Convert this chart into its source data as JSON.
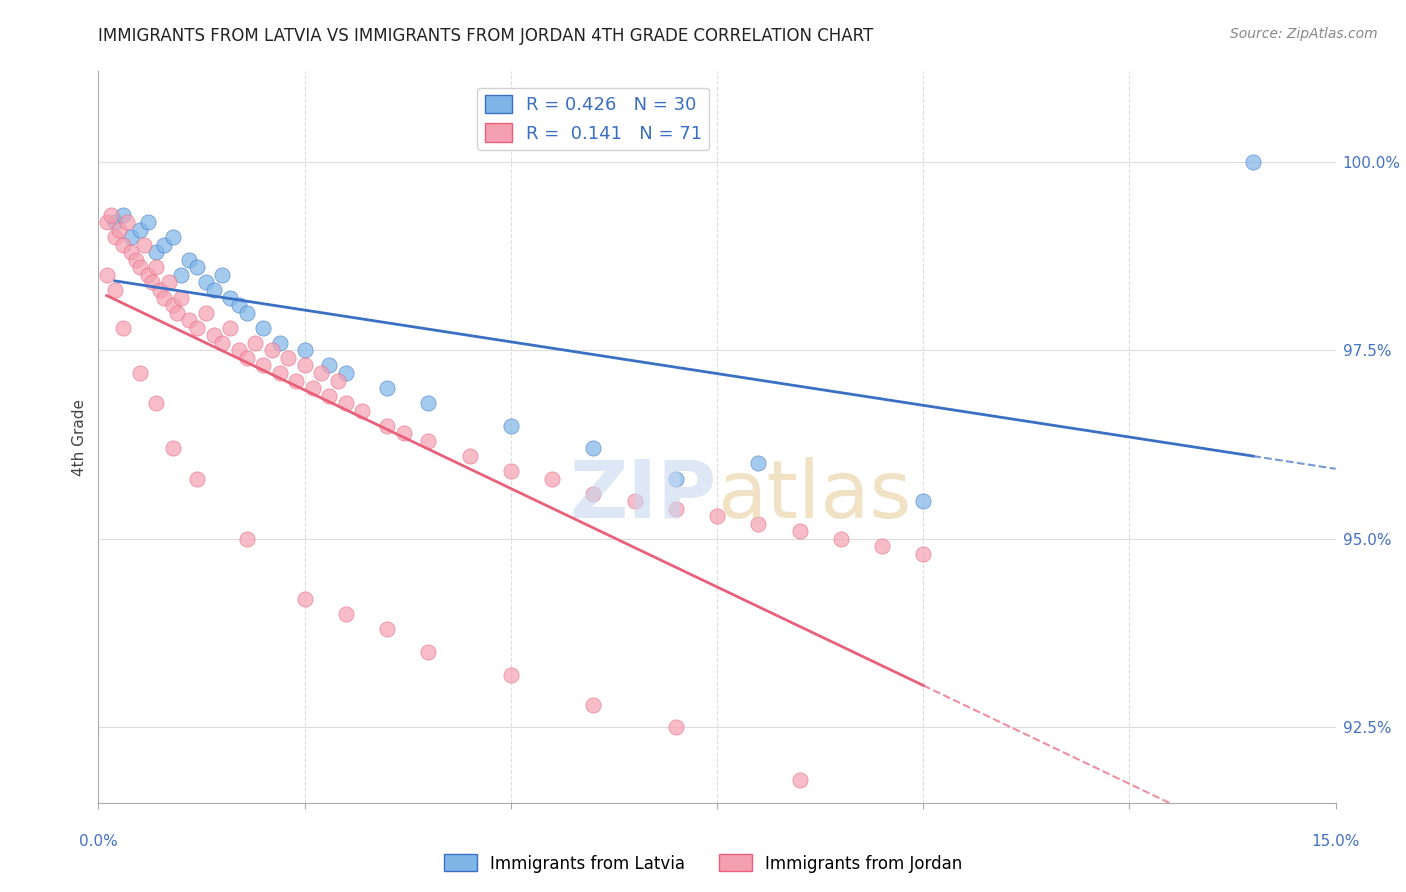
{
  "title": "IMMIGRANTS FROM LATVIA VS IMMIGRANTS FROM JORDAN 4TH GRADE CORRELATION CHART",
  "source": "Source: ZipAtlas.com",
  "ylabel": "4th Grade",
  "ytick_values": [
    92.5,
    95.0,
    97.5,
    100.0
  ],
  "xlim": [
    0.0,
    15.0
  ],
  "ylim": [
    91.5,
    101.2
  ],
  "legend_r_latvia": "R = 0.426",
  "legend_n_latvia": "N = 30",
  "legend_r_jordan": "R =  0.141",
  "legend_n_jordan": "N = 71",
  "color_latvia": "#7EB6E8",
  "color_jordan": "#F4A0B0",
  "color_trendline_latvia": "#3A6FC4",
  "color_trendline_jordan": "#E8607A",
  "color_axis_labels": "#4472C4",
  "latvia_x": [
    0.2,
    0.3,
    0.4,
    0.5,
    0.6,
    0.7,
    0.8,
    0.9,
    1.0,
    1.1,
    1.2,
    1.3,
    1.4,
    1.5,
    1.6,
    1.7,
    1.8,
    2.0,
    2.2,
    2.5,
    2.8,
    3.0,
    3.5,
    4.0,
    5.0,
    6.0,
    7.0,
    8.0,
    10.0,
    14.0
  ],
  "latvia_y": [
    99.2,
    99.3,
    99.0,
    99.1,
    99.2,
    98.8,
    98.9,
    99.0,
    98.5,
    98.7,
    98.6,
    98.4,
    98.3,
    98.5,
    98.2,
    98.1,
    98.0,
    97.8,
    97.6,
    97.5,
    97.3,
    97.2,
    97.0,
    96.8,
    96.5,
    96.2,
    95.8,
    96.0,
    95.5,
    100.0
  ],
  "jordan_x": [
    0.1,
    0.15,
    0.2,
    0.25,
    0.3,
    0.35,
    0.4,
    0.45,
    0.5,
    0.55,
    0.6,
    0.65,
    0.7,
    0.75,
    0.8,
    0.85,
    0.9,
    0.95,
    1.0,
    1.1,
    1.2,
    1.3,
    1.4,
    1.5,
    1.6,
    1.7,
    1.8,
    1.9,
    2.0,
    2.1,
    2.2,
    2.3,
    2.4,
    2.5,
    2.6,
    2.7,
    2.8,
    2.9,
    3.0,
    3.2,
    3.5,
    3.7,
    4.0,
    4.5,
    5.0,
    5.5,
    6.0,
    6.5,
    7.0,
    7.5,
    8.0,
    8.5,
    9.0,
    9.5,
    10.0,
    0.1,
    0.2,
    0.3,
    0.5,
    0.7,
    0.9,
    1.2,
    1.8,
    2.5,
    3.0,
    3.5,
    4.0,
    5.0,
    6.0,
    7.0,
    8.5
  ],
  "jordan_y": [
    99.2,
    99.3,
    99.0,
    99.1,
    98.9,
    99.2,
    98.8,
    98.7,
    98.6,
    98.9,
    98.5,
    98.4,
    98.6,
    98.3,
    98.2,
    98.4,
    98.1,
    98.0,
    98.2,
    97.9,
    97.8,
    98.0,
    97.7,
    97.6,
    97.8,
    97.5,
    97.4,
    97.6,
    97.3,
    97.5,
    97.2,
    97.4,
    97.1,
    97.3,
    97.0,
    97.2,
    96.9,
    97.1,
    96.8,
    96.7,
    96.5,
    96.4,
    96.3,
    96.1,
    95.9,
    95.8,
    95.6,
    95.5,
    95.4,
    95.3,
    95.2,
    95.1,
    95.0,
    94.9,
    94.8,
    98.5,
    98.3,
    97.8,
    97.2,
    96.8,
    96.2,
    95.8,
    95.0,
    94.2,
    94.0,
    93.8,
    93.5,
    93.2,
    92.8,
    92.5,
    91.8
  ]
}
